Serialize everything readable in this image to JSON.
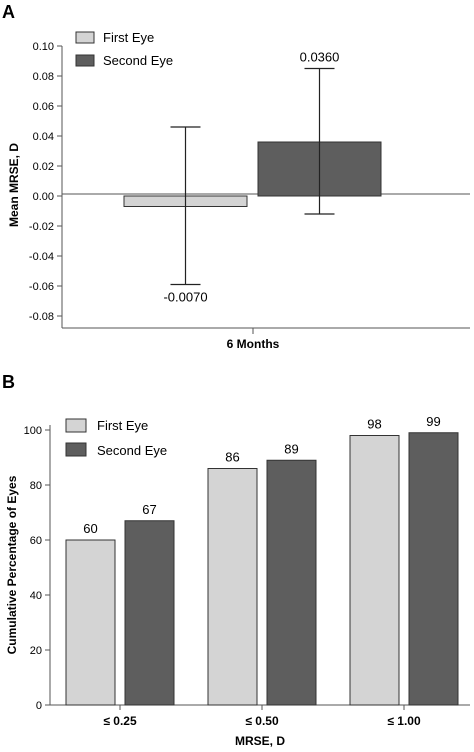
{
  "colors": {
    "first_eye": "#d4d4d4",
    "second_eye": "#5e5e5e",
    "axis": "#555555"
  },
  "chart_data": [
    {
      "panel": "A",
      "type": "bar",
      "xlabel": "6 Months",
      "ylabel": "Mean MRSE, D",
      "ylim": [
        -0.08,
        0.1
      ],
      "yticks": [
        "0.10",
        "0.08",
        "0.06",
        "0.04",
        "0.02",
        "0.00",
        "-0.02",
        "-0.04",
        "-0.06",
        "-0.08"
      ],
      "categories": [
        "6 Months"
      ],
      "legend_position": "top-left",
      "series": [
        {
          "name": "First Eye",
          "values": [
            -0.007
          ],
          "error_low": [
            -0.059
          ],
          "error_high": [
            0.046
          ],
          "label": "-0.0070"
        },
        {
          "name": "Second Eye",
          "values": [
            0.036
          ],
          "error_low": [
            -0.012
          ],
          "error_high": [
            0.085
          ],
          "label": "0.0360"
        }
      ]
    },
    {
      "panel": "B",
      "type": "bar",
      "xlabel": "MRSE, D",
      "ylabel": "Cumulative Percentage of Eyes",
      "ylim": [
        0,
        100
      ],
      "yticks": [
        "100",
        "80",
        "60",
        "40",
        "20",
        "0"
      ],
      "categories": [
        "≤ 0.25",
        "≤ 0.50",
        "≤ 1.00"
      ],
      "legend_position": "top-left",
      "series": [
        {
          "name": "First Eye",
          "values": [
            60,
            86,
            98
          ],
          "labels": [
            "60",
            "86",
            "98"
          ]
        },
        {
          "name": "Second Eye",
          "values": [
            67,
            89,
            99
          ],
          "labels": [
            "67",
            "89",
            "99"
          ]
        }
      ]
    }
  ]
}
